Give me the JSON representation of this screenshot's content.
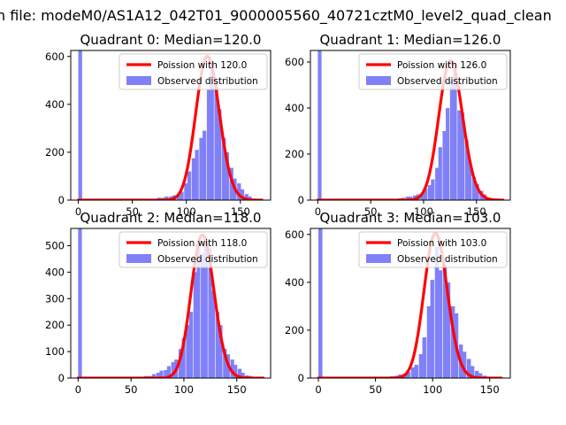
{
  "figure": {
    "suptitle": "n file: modeM0/AS1A12_042T01_9000005560_40721cztM0_level2_quad_clean"
  },
  "colors": {
    "hist_fill": "#8080f8",
    "poisson_line": "#ff0000",
    "axes": "#000000",
    "background": "#ffffff"
  },
  "chart_data": [
    {
      "type": "bar",
      "title": "Quadrant 0: Median=120.0",
      "xlabel": "",
      "ylabel": "",
      "xlim": [
        -7,
        178
      ],
      "ylim": [
        0,
        625
      ],
      "xticks": [
        0,
        50,
        100,
        150
      ],
      "yticks": [
        0,
        200,
        400,
        600
      ],
      "legend_placement": "top-right",
      "bin_width": 3.5,
      "bins": [
        [
          0,
          625
        ],
        [
          67,
          2
        ],
        [
          70,
          5
        ],
        [
          73,
          10
        ],
        [
          77,
          10
        ],
        [
          80,
          15
        ],
        [
          84,
          15
        ],
        [
          87,
          20
        ],
        [
          91,
          20
        ],
        [
          94,
          35
        ],
        [
          98,
          70
        ],
        [
          101,
          120
        ],
        [
          105,
          175
        ],
        [
          108,
          210
        ],
        [
          112,
          260
        ],
        [
          115,
          290
        ],
        [
          119,
          460
        ],
        [
          122,
          550
        ],
        [
          126,
          505
        ],
        [
          129,
          380
        ],
        [
          133,
          260
        ],
        [
          136,
          200
        ],
        [
          140,
          135
        ],
        [
          143,
          90
        ],
        [
          147,
          70
        ],
        [
          150,
          45
        ],
        [
          154,
          25
        ],
        [
          157,
          15
        ],
        [
          161,
          5
        ],
        [
          164,
          3
        ]
      ],
      "poisson": {
        "name": "Poission with 120.0",
        "mu": 120,
        "peak": 600,
        "x_range": [
          0,
          170
        ]
      },
      "observed_name": "Observed distribution"
    },
    {
      "type": "bar",
      "title": "Quadrant 1: Median=126.0",
      "xlabel": "",
      "ylabel": "",
      "xlim": [
        -7,
        182
      ],
      "ylim": [
        0,
        650
      ],
      "xticks": [
        0,
        50,
        100,
        150
      ],
      "yticks": [
        0,
        200,
        400,
        600
      ],
      "legend_placement": "top-right",
      "bin_width": 3.5,
      "bins": [
        [
          0,
          650
        ],
        [
          69,
          2
        ],
        [
          72,
          5
        ],
        [
          76,
          8
        ],
        [
          79,
          10
        ],
        [
          83,
          15
        ],
        [
          86,
          15
        ],
        [
          90,
          20
        ],
        [
          93,
          25
        ],
        [
          97,
          30
        ],
        [
          100,
          50
        ],
        [
          104,
          65
        ],
        [
          107,
          90
        ],
        [
          111,
          140
        ],
        [
          114,
          230
        ],
        [
          118,
          300
        ],
        [
          121,
          400
        ],
        [
          125,
          520
        ],
        [
          128,
          580
        ],
        [
          132,
          390
        ],
        [
          135,
          380
        ],
        [
          139,
          260
        ],
        [
          142,
          170
        ],
        [
          146,
          100
        ],
        [
          149,
          70
        ],
        [
          153,
          40
        ],
        [
          156,
          25
        ],
        [
          160,
          10
        ],
        [
          163,
          5
        ],
        [
          167,
          2
        ]
      ],
      "poisson": {
        "name": "Poission with 126.0",
        "mu": 126,
        "peak": 605,
        "x_range": [
          0,
          175
        ]
      },
      "observed_name": "Observed distribution"
    },
    {
      "type": "bar",
      "title": "Quadrant 2: Median=118.0",
      "xlabel": "",
      "ylabel": "",
      "xlim": [
        -7,
        182
      ],
      "ylim": [
        0,
        565
      ],
      "xticks": [
        0,
        50,
        100,
        150
      ],
      "yticks": [
        0,
        100,
        200,
        300,
        400,
        500
      ],
      "legend_placement": "top-right",
      "bin_width": 3.5,
      "bins": [
        [
          0,
          565
        ],
        [
          10,
          2
        ],
        [
          30,
          3
        ],
        [
          50,
          5
        ],
        [
          55,
          5
        ],
        [
          62,
          8
        ],
        [
          66,
          8
        ],
        [
          70,
          15
        ],
        [
          74,
          20
        ],
        [
          77,
          28
        ],
        [
          81,
          30
        ],
        [
          84,
          45
        ],
        [
          88,
          60
        ],
        [
          91,
          70
        ],
        [
          95,
          110
        ],
        [
          98,
          150
        ],
        [
          102,
          200
        ],
        [
          105,
          250
        ],
        [
          109,
          400
        ],
        [
          112,
          520
        ],
        [
          116,
          470
        ],
        [
          119,
          530
        ],
        [
          123,
          490
        ],
        [
          126,
          330
        ],
        [
          130,
          250
        ],
        [
          133,
          200
        ],
        [
          137,
          110
        ],
        [
          140,
          90
        ],
        [
          144,
          70
        ],
        [
          147,
          50
        ],
        [
          151,
          35
        ],
        [
          154,
          20
        ],
        [
          158,
          10
        ],
        [
          161,
          8
        ],
        [
          165,
          4
        ]
      ],
      "poisson": {
        "name": "Poission with 118.0",
        "mu": 118,
        "peak": 540,
        "x_range": [
          0,
          175
        ]
      },
      "observed_name": "Observed distribution"
    },
    {
      "type": "bar",
      "title": "Quadrant 3: Median=103.0",
      "xlabel": "",
      "ylabel": "",
      "xlim": [
        -7,
        168
      ],
      "ylim": [
        0,
        625
      ],
      "xticks": [
        0,
        50,
        100,
        150
      ],
      "yticks": [
        0,
        200,
        400,
        600
      ],
      "legend_placement": "top-right",
      "bin_width": 3.5,
      "bins": [
        [
          0,
          625
        ],
        [
          56,
          2
        ],
        [
          60,
          5
        ],
        [
          63,
          8
        ],
        [
          67,
          10
        ],
        [
          70,
          15
        ],
        [
          74,
          20
        ],
        [
          77,
          25
        ],
        [
          81,
          45
        ],
        [
          84,
          55
        ],
        [
          88,
          100
        ],
        [
          91,
          170
        ],
        [
          95,
          300
        ],
        [
          98,
          410
        ],
        [
          102,
          550
        ],
        [
          105,
          450
        ],
        [
          109,
          470
        ],
        [
          112,
          400
        ],
        [
          116,
          300
        ],
        [
          119,
          270
        ],
        [
          123,
          140
        ],
        [
          126,
          110
        ],
        [
          130,
          80
        ],
        [
          133,
          50
        ],
        [
          137,
          30
        ],
        [
          140,
          20
        ],
        [
          144,
          10
        ],
        [
          147,
          5
        ],
        [
          151,
          2
        ]
      ],
      "poisson": {
        "name": "Poission with 103.0",
        "mu": 103,
        "peak": 605,
        "x_range": [
          0,
          160
        ]
      },
      "observed_name": "Observed distribution"
    }
  ]
}
